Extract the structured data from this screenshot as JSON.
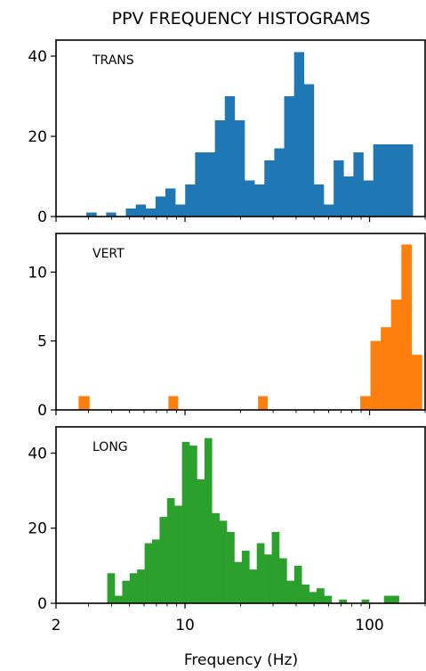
{
  "chart_data": {
    "type": "bar",
    "title": "PPV FREQUENCY HISTOGRAMS",
    "xlabel": "Frequency (Hz)",
    "x_scale": "log",
    "xlim": [
      2,
      200
    ],
    "x_ticks": [
      {
        "value": 2,
        "label": "2"
      },
      {
        "value": 10,
        "label": "10"
      },
      {
        "value": 100,
        "label": "100"
      }
    ],
    "grid": false,
    "panels": [
      {
        "label": "TRANS",
        "color": "#1f77b4",
        "ylim": [
          0,
          44
        ],
        "y_ticks": [
          {
            "value": 0,
            "label": "0"
          },
          {
            "value": 20,
            "label": "20"
          },
          {
            "value": 40,
            "label": "40"
          }
        ],
        "bins": [
          {
            "x0": 2.92,
            "x1": 3.31,
            "count": 1
          },
          {
            "x0": 3.74,
            "x1": 4.22,
            "count": 1
          },
          {
            "x0": 4.78,
            "x1": 5.41,
            "count": 2
          },
          {
            "x0": 5.41,
            "x1": 6.12,
            "count": 3
          },
          {
            "x0": 6.12,
            "x1": 6.92,
            "count": 2
          },
          {
            "x0": 6.92,
            "x1": 7.83,
            "count": 5
          },
          {
            "x0": 7.83,
            "x1": 8.86,
            "count": 7
          },
          {
            "x0": 8.86,
            "x1": 10.02,
            "count": 3
          },
          {
            "x0": 10.02,
            "x1": 11.34,
            "count": 8
          },
          {
            "x0": 11.34,
            "x1": 12.83,
            "count": 16
          },
          {
            "x0": 12.83,
            "x1": 14.52,
            "count": 16
          },
          {
            "x0": 14.52,
            "x1": 16.43,
            "count": 24
          },
          {
            "x0": 16.43,
            "x1": 18.58,
            "count": 30
          },
          {
            "x0": 18.58,
            "x1": 21.03,
            "count": 24
          },
          {
            "x0": 21.03,
            "x1": 23.79,
            "count": 9
          },
          {
            "x0": 23.79,
            "x1": 26.92,
            "count": 8
          },
          {
            "x0": 26.92,
            "x1": 30.46,
            "count": 14
          },
          {
            "x0": 30.46,
            "x1": 34.46,
            "count": 17
          },
          {
            "x0": 34.46,
            "x1": 38.99,
            "count": 30
          },
          {
            "x0": 38.99,
            "x1": 44.11,
            "count": 41
          },
          {
            "x0": 44.11,
            "x1": 49.91,
            "count": 33
          },
          {
            "x0": 49.91,
            "x1": 56.47,
            "count": 8
          },
          {
            "x0": 56.47,
            "x1": 63.89,
            "count": 3
          },
          {
            "x0": 63.89,
            "x1": 72.28,
            "count": 14
          },
          {
            "x0": 72.28,
            "x1": 81.78,
            "count": 10
          },
          {
            "x0": 81.78,
            "x1": 92.53,
            "count": 16
          },
          {
            "x0": 92.53,
            "x1": 104.69,
            "count": 9
          },
          {
            "x0": 104.69,
            "x1": 118.44,
            "count": 18
          },
          {
            "x0": 118.44,
            "x1": 134.0,
            "count": 18
          },
          {
            "x0": 134.0,
            "x1": 151.61,
            "count": 18
          },
          {
            "x0": 151.61,
            "x1": 171.53,
            "count": 18
          }
        ]
      },
      {
        "label": "VERT",
        "color": "#ff7f0e",
        "ylim": [
          0,
          12.8
        ],
        "y_ticks": [
          {
            "value": 0,
            "label": "0"
          },
          {
            "value": 5,
            "label": "5"
          },
          {
            "value": 10,
            "label": "10"
          }
        ],
        "bins": [
          {
            "x0": 2.65,
            "x1": 3.03,
            "count": 1
          },
          {
            "x0": 8.13,
            "x1": 9.16,
            "count": 1
          },
          {
            "x0": 24.89,
            "x1": 27.96,
            "count": 1
          },
          {
            "x0": 89.0,
            "x1": 101.18,
            "count": 1
          },
          {
            "x0": 101.18,
            "x1": 115.02,
            "count": 5
          },
          {
            "x0": 115.02,
            "x1": 130.77,
            "count": 6
          },
          {
            "x0": 130.77,
            "x1": 148.66,
            "count": 8
          },
          {
            "x0": 148.66,
            "x1": 169.0,
            "count": 12
          },
          {
            "x0": 169.0,
            "x1": 192.15,
            "count": 4
          }
        ]
      },
      {
        "label": "LONG",
        "color": "#2ca02c",
        "ylim": [
          0,
          47
        ],
        "y_ticks": [
          {
            "value": 0,
            "label": "0"
          },
          {
            "value": 20,
            "label": "20"
          },
          {
            "value": 40,
            "label": "40"
          }
        ],
        "bins": [
          {
            "x0": 3.79,
            "x1": 4.16,
            "count": 8
          },
          {
            "x0": 4.16,
            "x1": 4.57,
            "count": 2
          },
          {
            "x0": 4.57,
            "x1": 5.01,
            "count": 6
          },
          {
            "x0": 5.01,
            "x1": 5.5,
            "count": 8
          },
          {
            "x0": 5.5,
            "x1": 6.04,
            "count": 9
          },
          {
            "x0": 6.04,
            "x1": 6.63,
            "count": 16
          },
          {
            "x0": 6.63,
            "x1": 7.28,
            "count": 17
          },
          {
            "x0": 7.28,
            "x1": 7.99,
            "count": 23
          },
          {
            "x0": 7.99,
            "x1": 8.77,
            "count": 28
          },
          {
            "x0": 8.77,
            "x1": 9.63,
            "count": 26
          },
          {
            "x0": 9.63,
            "x1": 10.57,
            "count": 43
          },
          {
            "x0": 10.57,
            "x1": 11.6,
            "count": 42
          },
          {
            "x0": 11.6,
            "x1": 12.74,
            "count": 33
          },
          {
            "x0": 12.74,
            "x1": 13.98,
            "count": 44
          },
          {
            "x0": 13.98,
            "x1": 15.35,
            "count": 24
          },
          {
            "x0": 15.35,
            "x1": 16.85,
            "count": 22
          },
          {
            "x0": 16.85,
            "x1": 18.5,
            "count": 19
          },
          {
            "x0": 18.5,
            "x1": 20.31,
            "count": 11
          },
          {
            "x0": 20.31,
            "x1": 22.3,
            "count": 14
          },
          {
            "x0": 22.3,
            "x1": 24.48,
            "count": 9
          },
          {
            "x0": 24.48,
            "x1": 26.88,
            "count": 16
          },
          {
            "x0": 26.88,
            "x1": 29.51,
            "count": 13
          },
          {
            "x0": 29.51,
            "x1": 32.4,
            "count": 19
          },
          {
            "x0": 32.4,
            "x1": 35.57,
            "count": 12
          },
          {
            "x0": 35.57,
            "x1": 39.05,
            "count": 6
          },
          {
            "x0": 39.05,
            "x1": 42.87,
            "count": 10
          },
          {
            "x0": 42.87,
            "x1": 47.07,
            "count": 5
          },
          {
            "x0": 47.07,
            "x1": 51.67,
            "count": 3
          },
          {
            "x0": 51.67,
            "x1": 56.73,
            "count": 4
          },
          {
            "x0": 56.73,
            "x1": 62.28,
            "count": 2
          },
          {
            "x0": 68.38,
            "x1": 75.07,
            "count": 1
          },
          {
            "x0": 90.49,
            "x1": 99.35,
            "count": 1
          },
          {
            "x0": 119.71,
            "x1": 131.43,
            "count": 2
          },
          {
            "x0": 131.43,
            "x1": 144.29,
            "count": 2
          }
        ]
      }
    ]
  }
}
